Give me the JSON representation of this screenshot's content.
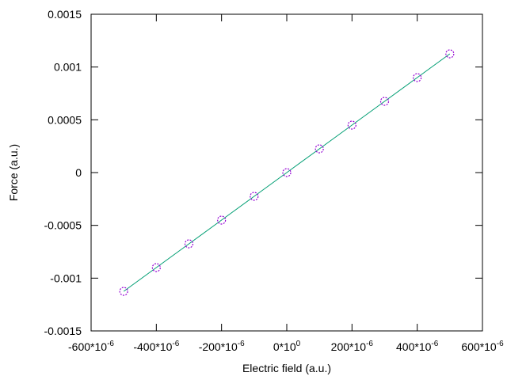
{
  "chart_data": {
    "type": "line",
    "x_label": "Electric field (a.u.)",
    "y_label": "Force (a.u.)",
    "x": [
      -0.0005,
      -0.0004,
      -0.0003,
      -0.0002,
      -0.0001,
      0,
      0.0001,
      0.0002,
      0.0003,
      0.0004,
      0.0005
    ],
    "series": [
      {
        "color": "#009e73",
        "marker_color": "#9400d3",
        "values": [
          -0.001125,
          -0.0009,
          -0.000675,
          -0.00045,
          -0.000225,
          0,
          0.000225,
          0.00045,
          0.000675,
          0.0009,
          0.001125
        ]
      }
    ],
    "xlim": [
      -0.0006,
      0.0006
    ],
    "xticks": [
      {
        "value": -0.0006,
        "label": "-600*10",
        "sup": "-6"
      },
      {
        "value": -0.0004,
        "label": "-400*10",
        "sup": "-6"
      },
      {
        "value": -0.0002,
        "label": "-200*10",
        "sup": "-6"
      },
      {
        "value": 0,
        "label": "0*10",
        "sup": "0"
      },
      {
        "value": 0.0002,
        "label": "200*10",
        "sup": "-6"
      },
      {
        "value": 0.0004,
        "label": "400*10",
        "sup": "-6"
      },
      {
        "value": 0.0006,
        "label": "600*10",
        "sup": "-6"
      }
    ],
    "ylim": [
      -0.0015,
      0.0015
    ],
    "yticks": [
      -0.0015,
      -0.001,
      -0.0005,
      0,
      0.0005,
      0.001,
      0.0015
    ],
    "grid": false
  }
}
